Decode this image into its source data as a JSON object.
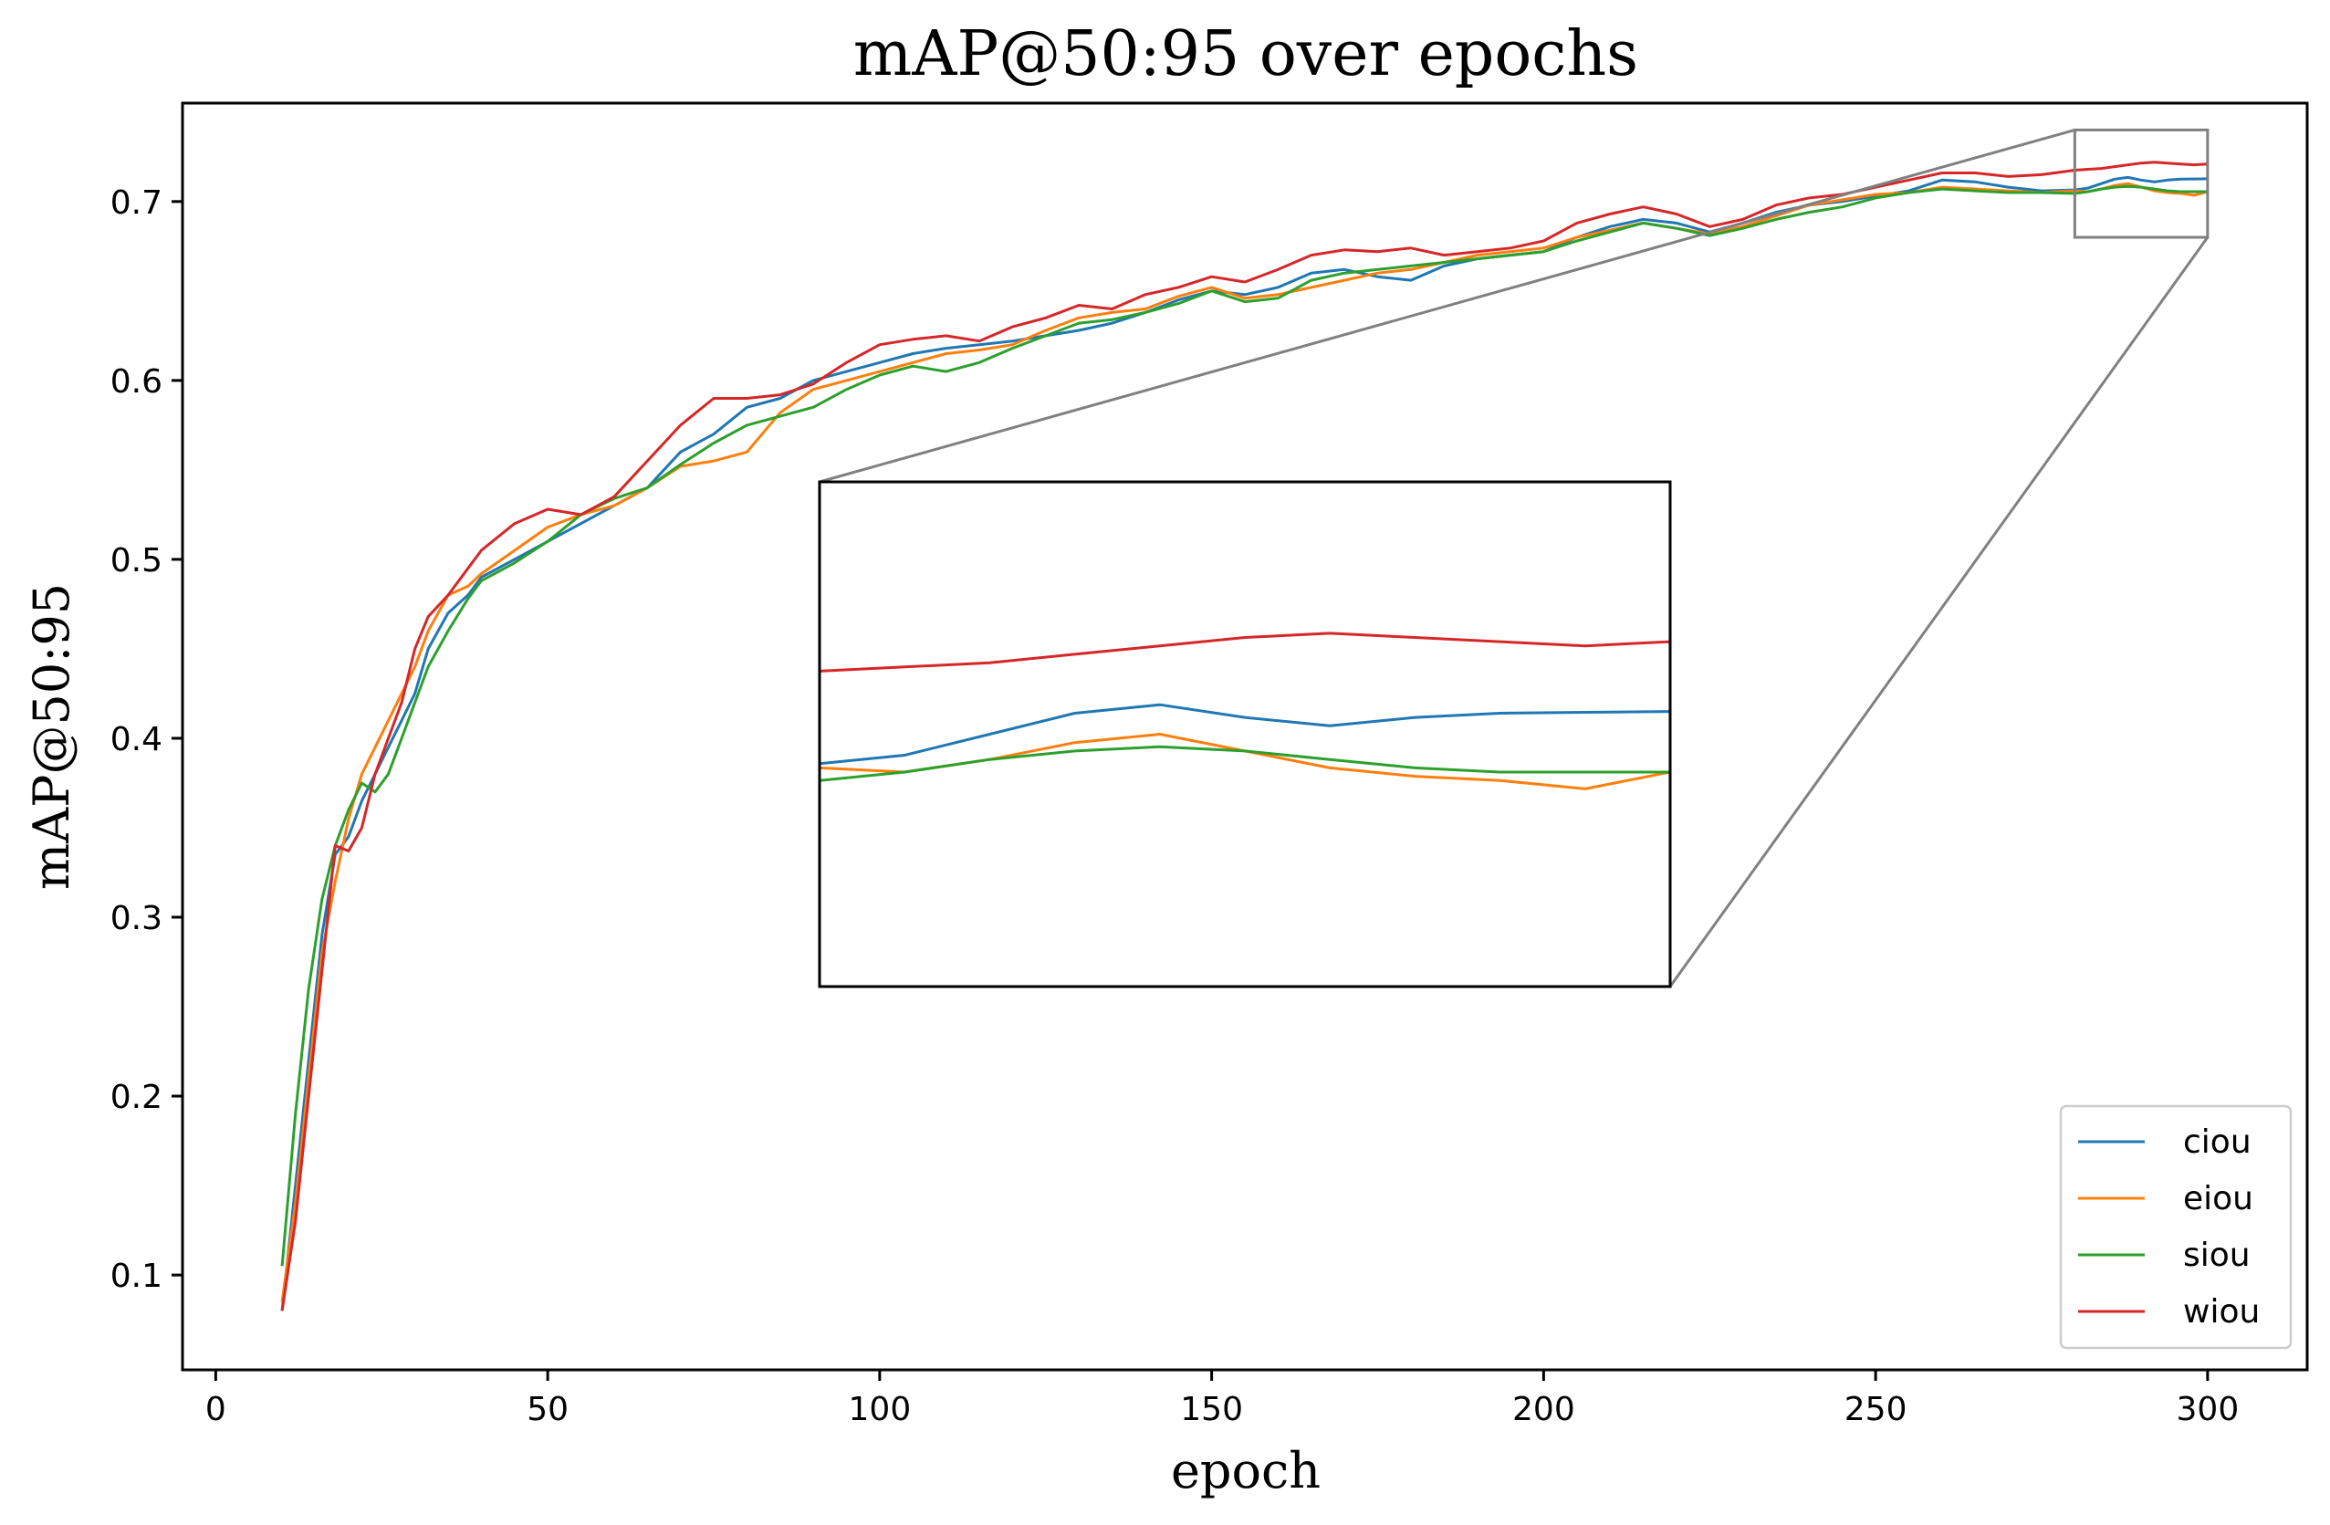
{
  "chart_data": {
    "type": "line",
    "title": "mAP@50:95 over epochs",
    "xlabel": "epoch",
    "ylabel": "mAP@50:95",
    "xlim": [
      -5,
      315
    ],
    "ylim": [
      0.047,
      0.755
    ],
    "xticks": [
      0,
      50,
      100,
      150,
      200,
      250,
      300
    ],
    "yticks": [
      0.1,
      0.2,
      0.3,
      0.4,
      0.5,
      0.6,
      0.7
    ],
    "xtick_labels": [
      "0",
      "50",
      "100",
      "150",
      "200",
      "250",
      "300"
    ],
    "ytick_labels": [
      "0.1",
      "0.2",
      "0.3",
      "0.4",
      "0.5",
      "0.6",
      "0.7"
    ],
    "grid": false,
    "legend_position": "lower-right",
    "x": [
      10,
      12,
      14,
      16,
      18,
      20,
      22,
      24,
      26,
      28,
      30,
      32,
      35,
      38,
      40,
      45,
      50,
      55,
      60,
      65,
      70,
      75,
      80,
      85,
      90,
      95,
      100,
      105,
      110,
      115,
      120,
      125,
      130,
      135,
      140,
      145,
      150,
      155,
      160,
      165,
      170,
      175,
      180,
      185,
      190,
      195,
      200,
      205,
      210,
      215,
      220,
      225,
      230,
      235,
      240,
      245,
      250,
      255,
      260,
      265,
      270,
      275,
      280,
      282,
      284,
      286,
      288,
      290,
      292,
      294,
      296,
      298,
      300
    ],
    "series": [
      {
        "name": "ciou",
        "color": "#1f77b4",
        "values": [
          0.08,
          0.15,
          0.22,
          0.29,
          0.335,
          0.345,
          0.365,
          0.38,
          0.395,
          0.41,
          0.425,
          0.45,
          0.47,
          0.48,
          0.49,
          0.5,
          0.51,
          0.52,
          0.53,
          0.54,
          0.56,
          0.57,
          0.585,
          0.59,
          0.6,
          0.605,
          0.61,
          0.615,
          0.618,
          0.62,
          0.622,
          0.625,
          0.628,
          0.632,
          0.638,
          0.645,
          0.65,
          0.648,
          0.652,
          0.66,
          0.662,
          0.658,
          0.656,
          0.664,
          0.668,
          0.67,
          0.672,
          0.68,
          0.686,
          0.69,
          0.688,
          0.683,
          0.688,
          0.694,
          0.698,
          0.7,
          0.703,
          0.706,
          0.712,
          0.711,
          0.708,
          0.706,
          0.7065,
          0.7075,
          0.71,
          0.7125,
          0.7135,
          0.712,
          0.711,
          0.712,
          0.7125,
          0.7126,
          0.7127
        ]
      },
      {
        "name": "eiou",
        "color": "#ff7f0e",
        "values": [
          0.085,
          0.14,
          0.21,
          0.28,
          0.32,
          0.355,
          0.38,
          0.395,
          0.41,
          0.425,
          0.44,
          0.46,
          0.48,
          0.485,
          0.492,
          0.505,
          0.518,
          0.525,
          0.53,
          0.54,
          0.552,
          0.555,
          0.56,
          0.582,
          0.595,
          0.6,
          0.605,
          0.61,
          0.615,
          0.617,
          0.62,
          0.628,
          0.635,
          0.638,
          0.64,
          0.647,
          0.652,
          0.646,
          0.648,
          0.652,
          0.656,
          0.66,
          0.662,
          0.666,
          0.67,
          0.672,
          0.674,
          0.68,
          0.684,
          0.688,
          0.685,
          0.682,
          0.686,
          0.692,
          0.698,
          0.701,
          0.704,
          0.705,
          0.708,
          0.707,
          0.706,
          0.705,
          0.706,
          0.7055,
          0.707,
          0.709,
          0.71,
          0.708,
          0.706,
          0.705,
          0.7045,
          0.7035,
          0.7055
        ]
      },
      {
        "name": "siou",
        "color": "#2ca02c",
        "values": [
          0.105,
          0.19,
          0.26,
          0.31,
          0.34,
          0.36,
          0.375,
          0.37,
          0.38,
          0.4,
          0.42,
          0.44,
          0.46,
          0.478,
          0.488,
          0.498,
          0.51,
          0.525,
          0.534,
          0.54,
          0.553,
          0.565,
          0.575,
          0.58,
          0.585,
          0.595,
          0.603,
          0.608,
          0.605,
          0.61,
          0.618,
          0.625,
          0.632,
          0.634,
          0.638,
          0.643,
          0.65,
          0.644,
          0.646,
          0.656,
          0.66,
          0.662,
          0.664,
          0.666,
          0.668,
          0.67,
          0.672,
          0.678,
          0.683,
          0.688,
          0.685,
          0.681,
          0.685,
          0.69,
          0.694,
          0.697,
          0.702,
          0.705,
          0.707,
          0.706,
          0.705,
          0.705,
          0.7045,
          0.7055,
          0.707,
          0.708,
          0.7085,
          0.708,
          0.707,
          0.706,
          0.7055,
          0.7055,
          0.7055
        ]
      },
      {
        "name": "wiou",
        "color": "#d62728",
        "values": [
          0.08,
          0.13,
          0.2,
          0.27,
          0.34,
          0.337,
          0.35,
          0.38,
          0.4,
          0.42,
          0.45,
          0.468,
          0.48,
          0.495,
          0.505,
          0.52,
          0.528,
          0.525,
          0.535,
          0.555,
          0.575,
          0.59,
          0.59,
          0.592,
          0.598,
          0.61,
          0.62,
          0.623,
          0.625,
          0.622,
          0.63,
          0.635,
          0.642,
          0.64,
          0.648,
          0.652,
          0.658,
          0.655,
          0.662,
          0.67,
          0.673,
          0.672,
          0.674,
          0.67,
          0.672,
          0.674,
          0.678,
          0.688,
          0.693,
          0.697,
          0.693,
          0.686,
          0.69,
          0.698,
          0.702,
          0.704,
          0.708,
          0.712,
          0.716,
          0.716,
          0.714,
          0.715,
          0.7175,
          0.718,
          0.7185,
          0.7195,
          0.7205,
          0.7215,
          0.722,
          0.7215,
          0.721,
          0.7205,
          0.721
        ]
      }
    ],
    "inset": {
      "xlim": [
        280,
        300
      ],
      "ylim": [
        0.68,
        0.74
      ],
      "indicator_color": "#808080"
    }
  }
}
